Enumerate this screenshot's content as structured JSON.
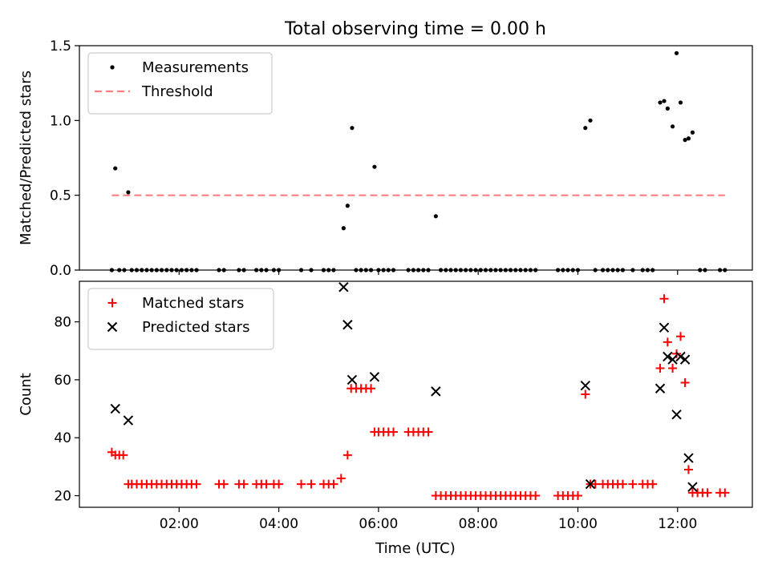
{
  "figure": {
    "title": "Total observing time = 0.00 h",
    "xlabel": "Time (UTC)"
  },
  "chart_data": [
    {
      "type": "scatter",
      "ylabel": "Matched/Predicted stars",
      "xlim_hours": [
        0.0,
        13.5
      ],
      "ylim": [
        0,
        1.5
      ],
      "yticks": [
        0.0,
        0.5,
        1.0,
        1.5
      ],
      "ytick_labels": [
        "0.0",
        "0.5",
        "1.0",
        "1.5"
      ],
      "legend_position": "top-left",
      "series": [
        {
          "name": "Measurements",
          "marker": "dot",
          "color": "#000000",
          "points": [
            [
              0.65,
              0
            ],
            [
              0.72,
              0.68
            ],
            [
              0.8,
              0
            ],
            [
              0.9,
              0
            ],
            [
              0.98,
              0.52
            ],
            [
              1.05,
              0
            ],
            [
              1.15,
              0
            ],
            [
              1.25,
              0
            ],
            [
              1.35,
              0
            ],
            [
              1.45,
              0
            ],
            [
              1.55,
              0
            ],
            [
              1.65,
              0
            ],
            [
              1.75,
              0
            ],
            [
              1.85,
              0
            ],
            [
              1.95,
              0
            ],
            [
              2.05,
              0
            ],
            [
              2.15,
              0
            ],
            [
              2.25,
              0
            ],
            [
              2.35,
              0
            ],
            [
              2.8,
              0
            ],
            [
              2.9,
              0
            ],
            [
              3.2,
              0
            ],
            [
              3.3,
              0
            ],
            [
              3.55,
              0
            ],
            [
              3.65,
              0
            ],
            [
              3.75,
              0
            ],
            [
              3.9,
              0
            ],
            [
              4.0,
              0
            ],
            [
              4.45,
              0
            ],
            [
              4.65,
              0
            ],
            [
              4.9,
              0
            ],
            [
              5.0,
              0
            ],
            [
              5.1,
              0
            ],
            [
              5.3,
              0.28
            ],
            [
              5.38,
              0.43
            ],
            [
              5.47,
              0.95
            ],
            [
              5.55,
              0
            ],
            [
              5.65,
              0
            ],
            [
              5.75,
              0
            ],
            [
              5.85,
              0
            ],
            [
              5.92,
              0.69
            ],
            [
              6.0,
              0
            ],
            [
              6.1,
              0
            ],
            [
              6.2,
              0
            ],
            [
              6.3,
              0
            ],
            [
              6.6,
              0
            ],
            [
              6.7,
              0
            ],
            [
              6.8,
              0
            ],
            [
              6.9,
              0
            ],
            [
              7.0,
              0
            ],
            [
              7.15,
              0.36
            ],
            [
              7.25,
              0
            ],
            [
              7.35,
              0
            ],
            [
              7.45,
              0
            ],
            [
              7.55,
              0
            ],
            [
              7.65,
              0
            ],
            [
              7.75,
              0
            ],
            [
              7.85,
              0
            ],
            [
              7.95,
              0
            ],
            [
              8.05,
              0
            ],
            [
              8.15,
              0
            ],
            [
              8.25,
              0
            ],
            [
              8.35,
              0
            ],
            [
              8.45,
              0
            ],
            [
              8.55,
              0
            ],
            [
              8.65,
              0
            ],
            [
              8.75,
              0
            ],
            [
              8.85,
              0
            ],
            [
              8.95,
              0
            ],
            [
              9.05,
              0
            ],
            [
              9.15,
              0
            ],
            [
              9.6,
              0
            ],
            [
              9.7,
              0
            ],
            [
              9.8,
              0
            ],
            [
              9.9,
              0
            ],
            [
              10.0,
              0
            ],
            [
              10.15,
              0.95
            ],
            [
              10.25,
              1.0
            ],
            [
              10.35,
              0
            ],
            [
              10.5,
              0
            ],
            [
              10.6,
              0
            ],
            [
              10.7,
              0
            ],
            [
              10.8,
              0
            ],
            [
              10.9,
              0
            ],
            [
              11.1,
              0
            ],
            [
              11.3,
              0
            ],
            [
              11.4,
              0
            ],
            [
              11.5,
              0
            ],
            [
              11.65,
              1.12
            ],
            [
              11.73,
              1.13
            ],
            [
              11.8,
              1.08
            ],
            [
              11.9,
              0.96
            ],
            [
              11.98,
              1.45
            ],
            [
              12.06,
              1.12
            ],
            [
              12.15,
              0.87
            ],
            [
              12.22,
              0.88
            ],
            [
              12.3,
              0.92
            ],
            [
              12.45,
              0
            ],
            [
              12.55,
              0
            ],
            [
              12.85,
              0
            ],
            [
              12.95,
              0
            ]
          ]
        },
        {
          "name": "Threshold",
          "marker": "dashed-line",
          "color": "#ff7f7f",
          "points": [
            [
              0.65,
              0.5
            ],
            [
              12.95,
              0.5
            ]
          ]
        }
      ]
    },
    {
      "type": "scatter",
      "ylabel": "Count",
      "xlim_hours": [
        0.0,
        13.5
      ],
      "ylim": [
        16,
        94
      ],
      "yticks": [
        20,
        40,
        60,
        80
      ],
      "ytick_labels": [
        "20",
        "40",
        "60",
        "80"
      ],
      "xticks_hours": [
        2,
        4,
        6,
        8,
        10,
        12
      ],
      "xtick_labels": [
        "02:00",
        "04:00",
        "06:00",
        "08:00",
        "10:00",
        "12:00"
      ],
      "legend_position": "top-left",
      "series": [
        {
          "name": "Matched stars",
          "marker": "plus",
          "color": "#ff0000",
          "points": [
            [
              0.65,
              35
            ],
            [
              0.72,
              34
            ],
            [
              0.8,
              34
            ],
            [
              0.88,
              34
            ],
            [
              0.98,
              24
            ],
            [
              1.05,
              24
            ],
            [
              1.15,
              24
            ],
            [
              1.25,
              24
            ],
            [
              1.35,
              24
            ],
            [
              1.45,
              24
            ],
            [
              1.55,
              24
            ],
            [
              1.65,
              24
            ],
            [
              1.75,
              24
            ],
            [
              1.85,
              24
            ],
            [
              1.95,
              24
            ],
            [
              2.05,
              24
            ],
            [
              2.15,
              24
            ],
            [
              2.25,
              24
            ],
            [
              2.35,
              24
            ],
            [
              2.8,
              24
            ],
            [
              2.9,
              24
            ],
            [
              3.2,
              24
            ],
            [
              3.3,
              24
            ],
            [
              3.55,
              24
            ],
            [
              3.65,
              24
            ],
            [
              3.75,
              24
            ],
            [
              3.9,
              24
            ],
            [
              4.0,
              24
            ],
            [
              4.45,
              24
            ],
            [
              4.65,
              24
            ],
            [
              4.9,
              24
            ],
            [
              5.0,
              24
            ],
            [
              5.1,
              24
            ],
            [
              5.25,
              26
            ],
            [
              5.38,
              34
            ],
            [
              5.45,
              57
            ],
            [
              5.55,
              57
            ],
            [
              5.65,
              57
            ],
            [
              5.75,
              57
            ],
            [
              5.85,
              57
            ],
            [
              5.92,
              42
            ],
            [
              6.0,
              42
            ],
            [
              6.1,
              42
            ],
            [
              6.2,
              42
            ],
            [
              6.3,
              42
            ],
            [
              6.6,
              42
            ],
            [
              6.7,
              42
            ],
            [
              6.8,
              42
            ],
            [
              6.9,
              42
            ],
            [
              7.0,
              42
            ],
            [
              7.15,
              20
            ],
            [
              7.25,
              20
            ],
            [
              7.35,
              20
            ],
            [
              7.45,
              20
            ],
            [
              7.55,
              20
            ],
            [
              7.65,
              20
            ],
            [
              7.75,
              20
            ],
            [
              7.85,
              20
            ],
            [
              7.95,
              20
            ],
            [
              8.05,
              20
            ],
            [
              8.15,
              20
            ],
            [
              8.25,
              20
            ],
            [
              8.35,
              20
            ],
            [
              8.45,
              20
            ],
            [
              8.55,
              20
            ],
            [
              8.65,
              20
            ],
            [
              8.75,
              20
            ],
            [
              8.85,
              20
            ],
            [
              8.95,
              20
            ],
            [
              9.05,
              20
            ],
            [
              9.15,
              20
            ],
            [
              9.6,
              20
            ],
            [
              9.7,
              20
            ],
            [
              9.8,
              20
            ],
            [
              9.9,
              20
            ],
            [
              10.0,
              20
            ],
            [
              10.15,
              55
            ],
            [
              10.25,
              24
            ],
            [
              10.35,
              24
            ],
            [
              10.5,
              24
            ],
            [
              10.6,
              24
            ],
            [
              10.7,
              24
            ],
            [
              10.8,
              24
            ],
            [
              10.9,
              24
            ],
            [
              11.1,
              24
            ],
            [
              11.3,
              24
            ],
            [
              11.4,
              24
            ],
            [
              11.5,
              24
            ],
            [
              11.65,
              64
            ],
            [
              11.73,
              88
            ],
            [
              11.8,
              73
            ],
            [
              11.9,
              64
            ],
            [
              11.98,
              69
            ],
            [
              12.06,
              75
            ],
            [
              12.15,
              59
            ],
            [
              12.22,
              29
            ],
            [
              12.3,
              21
            ],
            [
              12.4,
              21
            ],
            [
              12.5,
              21
            ],
            [
              12.6,
              21
            ],
            [
              12.85,
              21
            ],
            [
              12.95,
              21
            ]
          ]
        },
        {
          "name": "Predicted stars",
          "marker": "x",
          "color": "#000000",
          "points": [
            [
              0.72,
              50
            ],
            [
              0.98,
              46
            ],
            [
              5.3,
              92
            ],
            [
              5.38,
              79
            ],
            [
              5.47,
              60
            ],
            [
              5.92,
              61
            ],
            [
              7.15,
              56
            ],
            [
              10.15,
              58
            ],
            [
              10.25,
              24
            ],
            [
              11.65,
              57
            ],
            [
              11.73,
              78
            ],
            [
              11.8,
              68
            ],
            [
              11.9,
              67
            ],
            [
              11.98,
              48
            ],
            [
              12.06,
              68
            ],
            [
              12.15,
              67
            ],
            [
              12.22,
              33
            ],
            [
              12.3,
              23
            ]
          ]
        }
      ]
    }
  ]
}
